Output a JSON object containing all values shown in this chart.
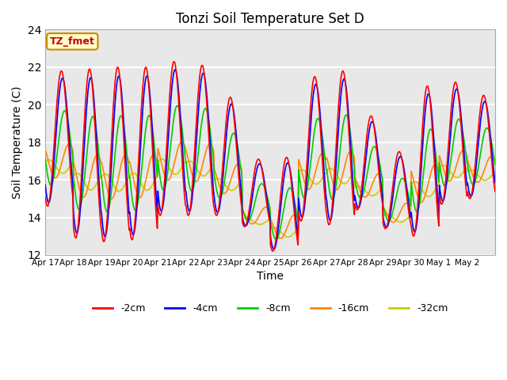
{
  "title": "Tonzi Soil Temperature Set D",
  "xlabel": "Time",
  "ylabel": "Soil Temperature (C)",
  "ylim": [
    12,
    24
  ],
  "yticks": [
    12,
    14,
    16,
    18,
    20,
    22,
    24
  ],
  "x_tick_labels": [
    "Apr 17",
    "Apr 18",
    "Apr 19",
    "Apr 20",
    "Apr 21",
    "Apr 22",
    "Apr 23",
    "Apr 24",
    "Apr 25",
    "Apr 26",
    "Apr 27",
    "Apr 28",
    "Apr 29",
    "Apr 30",
    "May 1",
    "May 2"
  ],
  "annotation_text": "TZ_fmet",
  "annotation_color": "#cc0000",
  "annotation_bg": "#ffffcc",
  "annotation_border": "#cc8800",
  "colors": {
    "-2cm": "#ff0000",
    "-4cm": "#0000ff",
    "-8cm": "#00cc00",
    "-16cm": "#ff8800",
    "-32cm": "#cccc00"
  },
  "bg_color": "#e8e8e8",
  "grid_color": "#ffffff",
  "n_days": 16,
  "points_per_day": 48,
  "day_maxes_2cm": [
    21.8,
    21.9,
    22.0,
    22.0,
    22.3,
    22.1,
    20.4,
    17.1,
    17.2,
    21.5,
    21.8,
    19.4,
    17.5,
    21.0,
    21.2,
    20.5
  ],
  "day_mins_2cm": [
    14.6,
    12.9,
    12.7,
    12.8,
    14.1,
    14.1,
    14.1,
    13.5,
    12.2,
    13.8,
    13.6,
    14.4,
    13.4,
    13.0,
    14.7,
    15.0
  ]
}
